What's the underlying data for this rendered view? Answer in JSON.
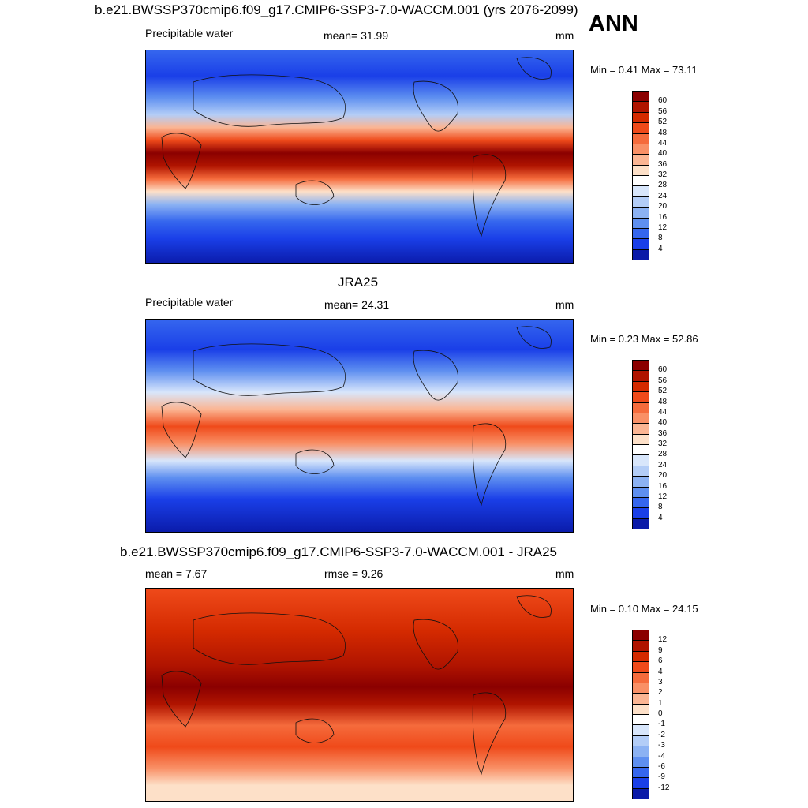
{
  "season": "ANN",
  "panels": [
    {
      "title": "b.e21.BWSSP370cmip6.f09_g17.CMIP6-SSP3-7.0-WACCM.001 (yrs 2076-2099)",
      "left_label": "Precipitable water",
      "center_label": "mean=  31.99",
      "units": "mm",
      "minmax": "Min =   0.41 Max =  73.11"
    },
    {
      "title": "JRA25",
      "left_label": "Precipitable water",
      "center_label": "mean=  24.31",
      "units": "mm",
      "minmax": "Min =   0.23 Max =  52.86"
    },
    {
      "title": "b.e21.BWSSP370cmip6.f09_g17.CMIP6-SSP3-7.0-WACCM.001 - JRA25",
      "left_label": "mean =   7.67",
      "center_label": "rmse =    9.26",
      "units": "mm",
      "minmax": "Min =   0.10 Max =  24.15"
    }
  ],
  "legend_abs": {
    "labels": [
      "60",
      "56",
      "52",
      "48",
      "44",
      "40",
      "36",
      "32",
      "28",
      "24",
      "20",
      "16",
      "12",
      "8",
      "4"
    ],
    "colors": [
      "#8b0000",
      "#b01400",
      "#d42a00",
      "#ef4a1a",
      "#f56b3c",
      "#f99066",
      "#fbb593",
      "#fde0c8",
      "#ffffff",
      "#d8e6fb",
      "#b3cdf7",
      "#8cb2f3",
      "#5e8ff0",
      "#3566ee",
      "#1a3fe8",
      "#0a1aa8"
    ]
  },
  "legend_diff": {
    "labels": [
      "12",
      "9",
      "6",
      "4",
      "3",
      "2",
      "1",
      "0",
      "-1",
      "-2",
      "-3",
      "-4",
      "-6",
      "-9",
      "-12"
    ],
    "colors": [
      "#8b0000",
      "#b01400",
      "#d42a00",
      "#ef4a1a",
      "#f56b3c",
      "#f99066",
      "#fbb593",
      "#fde0c8",
      "#ffffff",
      "#d8e6fb",
      "#b3cdf7",
      "#8cb2f3",
      "#5e8ff0",
      "#3566ee",
      "#1a3fe8",
      "#0a1aa8"
    ]
  }
}
